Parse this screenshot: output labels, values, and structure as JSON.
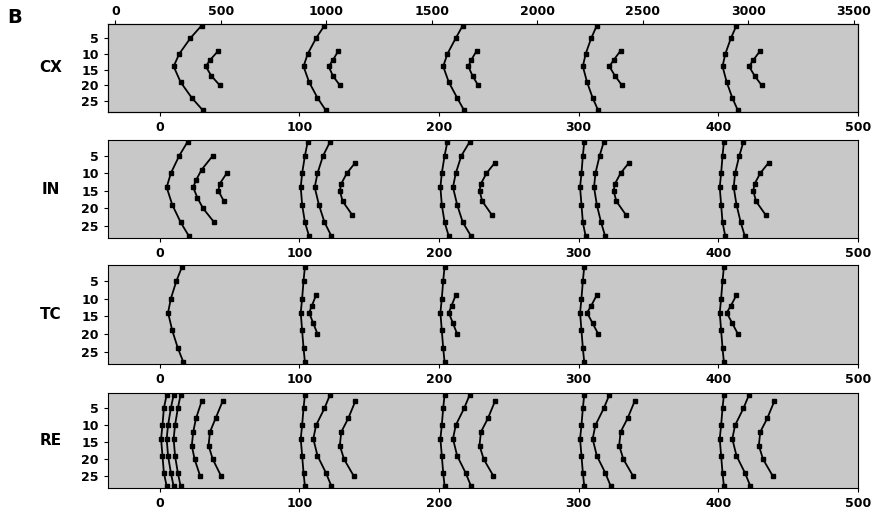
{
  "panel_label": "B",
  "chart_data": [
    {
      "type": "raster",
      "ylabel": "CX",
      "xlim": [
        -37,
        500
      ],
      "xticks": [
        0,
        100,
        200,
        300,
        400,
        500
      ],
      "x2lim": [
        -35,
        3520
      ],
      "x2ticks": [
        0,
        500,
        1000,
        1500,
        2000,
        2500,
        3000,
        3500
      ],
      "ylim": [
        28.5,
        0.5
      ],
      "yticks": [
        5,
        10,
        15,
        20,
        25
      ],
      "fronts": [
        {
          "rows": [
            1,
            5,
            10,
            14,
            19,
            24,
            28
          ],
          "times": [
            30,
            22,
            14,
            10,
            15,
            23,
            31
          ]
        },
        {
          "rows": [
            9,
            12,
            14,
            17,
            20
          ],
          "times": [
            42,
            36,
            33,
            37,
            43
          ]
        },
        {
          "rows": [
            1,
            5,
            10,
            14,
            19,
            24,
            28
          ],
          "times": [
            118,
            112,
            106,
            103,
            107,
            113,
            119
          ]
        },
        {
          "rows": [
            9,
            12,
            14,
            17,
            20
          ],
          "times": [
            128,
            124,
            121,
            124,
            129
          ]
        },
        {
          "rows": [
            1,
            5,
            10,
            14,
            19,
            24,
            28
          ],
          "times": [
            217,
            212,
            206,
            203,
            207,
            213,
            218
          ]
        },
        {
          "rows": [
            9,
            12,
            14,
            17,
            20
          ],
          "times": [
            227,
            223,
            221,
            224,
            228
          ]
        },
        {
          "rows": [
            1,
            5,
            10,
            14,
            19,
            24,
            28
          ],
          "times": [
            313,
            309,
            305,
            303,
            306,
            310,
            314
          ]
        },
        {
          "rows": [
            9,
            12,
            14,
            17,
            20
          ],
          "times": [
            330,
            325,
            322,
            326,
            331
          ]
        },
        {
          "rows": [
            1,
            5,
            10,
            14,
            19,
            24,
            28
          ],
          "times": [
            413,
            409,
            405,
            403,
            406,
            410,
            414
          ]
        },
        {
          "rows": [
            9,
            12,
            14,
            17,
            20
          ],
          "times": [
            430,
            425,
            422,
            426,
            431
          ]
        }
      ]
    },
    {
      "type": "raster",
      "ylabel": "IN",
      "xlim": [
        -37,
        500
      ],
      "xticks": [
        0,
        100,
        200,
        300,
        400,
        500
      ],
      "ylim": [
        28.5,
        0.5
      ],
      "yticks": [
        5,
        10,
        15,
        20,
        25
      ],
      "fronts": [
        {
          "rows": [
            1,
            5,
            10,
            14,
            19,
            24,
            28
          ],
          "times": [
            20,
            14,
            8,
            5,
            9,
            15,
            21
          ]
        },
        {
          "rows": [
            5,
            9,
            12,
            14,
            17,
            20,
            24
          ],
          "times": [
            38,
            30,
            26,
            24,
            27,
            31,
            39
          ]
        },
        {
          "rows": [
            10,
            13,
            15,
            18
          ],
          "times": [
            48,
            43,
            42,
            46
          ]
        },
        {
          "rows": [
            1,
            5,
            10,
            14,
            19,
            24,
            28
          ],
          "times": [
            106,
            104,
            102,
            101,
            102,
            104,
            107
          ]
        },
        {
          "rows": [
            1,
            5,
            10,
            14,
            19,
            24,
            28
          ],
          "times": [
            122,
            117,
            113,
            111,
            114,
            118,
            123
          ]
        },
        {
          "rows": [
            7,
            10,
            13,
            15,
            18,
            22
          ],
          "times": [
            140,
            134,
            130,
            129,
            131,
            138
          ]
        },
        {
          "rows": [
            1,
            5,
            10,
            14,
            19,
            24,
            28
          ],
          "times": [
            206,
            204,
            202,
            201,
            202,
            204,
            207
          ]
        },
        {
          "rows": [
            1,
            5,
            10,
            14,
            19,
            24,
            28
          ],
          "times": [
            222,
            216,
            212,
            210,
            213,
            217,
            223
          ]
        },
        {
          "rows": [
            7,
            10,
            13,
            15,
            18,
            22
          ],
          "times": [
            240,
            234,
            230,
            229,
            231,
            238
          ]
        },
        {
          "rows": [
            1,
            5,
            10,
            14,
            19,
            24,
            28
          ],
          "times": [
            304,
            303,
            302,
            301,
            302,
            303,
            305
          ]
        },
        {
          "rows": [
            1,
            5,
            10,
            14,
            19,
            24,
            28
          ],
          "times": [
            318,
            315,
            312,
            311,
            313,
            316,
            319
          ]
        },
        {
          "rows": [
            7,
            10,
            13,
            15,
            18,
            22
          ],
          "times": [
            336,
            330,
            326,
            325,
            327,
            334
          ]
        },
        {
          "rows": [
            1,
            5,
            10,
            14,
            19,
            24,
            28
          ],
          "times": [
            404,
            403,
            402,
            401,
            402,
            403,
            405
          ]
        },
        {
          "rows": [
            1,
            5,
            10,
            14,
            19,
            24,
            28
          ],
          "times": [
            418,
            415,
            412,
            411,
            413,
            416,
            419
          ]
        },
        {
          "rows": [
            7,
            10,
            13,
            15,
            18,
            22
          ],
          "times": [
            436,
            430,
            426,
            425,
            427,
            434
          ]
        }
      ]
    },
    {
      "type": "raster",
      "ylabel": "TC",
      "xlim": [
        -37,
        500
      ],
      "xticks": [
        0,
        100,
        200,
        300,
        400,
        500
      ],
      "ylim": [
        28.5,
        0.5
      ],
      "yticks": [
        5,
        10,
        15,
        20,
        25
      ],
      "fronts": [
        {
          "rows": [
            1,
            5,
            10,
            14,
            19,
            24,
            28
          ],
          "times": [
            16,
            12,
            8,
            6,
            9,
            13,
            17
          ]
        },
        {
          "rows": [
            1,
            5,
            10,
            14,
            19,
            24,
            28
          ],
          "times": [
            104,
            103,
            102,
            101,
            102,
            103,
            104
          ]
        },
        {
          "rows": [
            9,
            12,
            14,
            17,
            20
          ],
          "times": [
            112,
            109,
            107,
            110,
            113
          ]
        },
        {
          "rows": [
            1,
            5,
            10,
            14,
            19,
            24,
            28
          ],
          "times": [
            204,
            203,
            202,
            201,
            202,
            203,
            204
          ]
        },
        {
          "rows": [
            9,
            12,
            14,
            17,
            20
          ],
          "times": [
            212,
            209,
            207,
            210,
            213
          ]
        },
        {
          "rows": [
            1,
            5,
            10,
            14,
            19,
            24,
            28
          ],
          "times": [
            304,
            303,
            302,
            301,
            302,
            303,
            304
          ]
        },
        {
          "rows": [
            9,
            12,
            14,
            17,
            20
          ],
          "times": [
            313,
            309,
            306,
            310,
            314
          ]
        },
        {
          "rows": [
            1,
            5,
            10,
            14,
            19,
            24,
            28
          ],
          "times": [
            404,
            403,
            402,
            401,
            402,
            403,
            404
          ]
        },
        {
          "rows": [
            9,
            12,
            14,
            17,
            20
          ],
          "times": [
            413,
            409,
            406,
            410,
            414
          ]
        }
      ]
    },
    {
      "type": "raster",
      "ylabel": "RE",
      "xlim": [
        -37,
        500
      ],
      "xticks": [
        0,
        100,
        200,
        300,
        400,
        500
      ],
      "ylim": [
        28.5,
        0.5
      ],
      "yticks": [
        5,
        10,
        15,
        20,
        25
      ],
      "fronts": [
        {
          "rows": [
            1,
            5,
            10,
            14,
            19,
            24,
            28
          ],
          "times": [
            5,
            3,
            2,
            1,
            2,
            3,
            5
          ]
        },
        {
          "rows": [
            1,
            5,
            10,
            14,
            19,
            24,
            28
          ],
          "times": [
            10,
            8,
            6,
            5,
            6,
            8,
            10
          ]
        },
        {
          "rows": [
            1,
            5,
            10,
            14,
            19,
            24,
            28
          ],
          "times": [
            15,
            13,
            11,
            10,
            11,
            13,
            15
          ]
        },
        {
          "rows": [
            3,
            8,
            12,
            16,
            20,
            25
          ],
          "times": [
            30,
            26,
            24,
            23,
            25,
            29
          ]
        },
        {
          "rows": [
            3,
            8,
            12,
            16,
            20,
            25
          ],
          "times": [
            45,
            40,
            36,
            35,
            38,
            44
          ]
        },
        {
          "rows": [
            1,
            5,
            10,
            14,
            19,
            24,
            28
          ],
          "times": [
            104,
            103,
            102,
            101,
            102,
            103,
            104
          ]
        },
        {
          "rows": [
            1,
            5,
            10,
            14,
            19,
            24,
            28
          ],
          "times": [
            122,
            118,
            112,
            110,
            113,
            119,
            123
          ]
        },
        {
          "rows": [
            3,
            8,
            12,
            16,
            20,
            25
          ],
          "times": [
            140,
            135,
            130,
            129,
            132,
            139
          ]
        },
        {
          "rows": [
            1,
            5,
            10,
            14,
            19,
            24,
            28
          ],
          "times": [
            204,
            203,
            202,
            201,
            202,
            203,
            204
          ]
        },
        {
          "rows": [
            1,
            5,
            10,
            14,
            19,
            24,
            28
          ],
          "times": [
            222,
            218,
            212,
            210,
            213,
            219,
            223
          ]
        },
        {
          "rows": [
            3,
            8,
            12,
            16,
            20,
            25
          ],
          "times": [
            240,
            235,
            230,
            229,
            232,
            239
          ]
        },
        {
          "rows": [
            1,
            5,
            10,
            14,
            19,
            24,
            28
          ],
          "times": [
            304,
            303,
            302,
            301,
            302,
            303,
            304
          ]
        },
        {
          "rows": [
            1,
            5,
            10,
            14,
            19,
            24,
            28
          ],
          "times": [
            322,
            318,
            312,
            310,
            313,
            319,
            323
          ]
        },
        {
          "rows": [
            3,
            8,
            12,
            16,
            20,
            25
          ],
          "times": [
            340,
            335,
            330,
            329,
            332,
            339
          ]
        },
        {
          "rows": [
            1,
            5,
            10,
            14,
            19,
            24,
            28
          ],
          "times": [
            404,
            403,
            402,
            401,
            402,
            403,
            404
          ]
        },
        {
          "rows": [
            1,
            5,
            10,
            14,
            19,
            24,
            28
          ],
          "times": [
            422,
            418,
            412,
            410,
            413,
            419,
            423
          ]
        },
        {
          "rows": [
            3,
            8,
            12,
            16,
            20,
            25
          ],
          "times": [
            440,
            435,
            430,
            429,
            432,
            439
          ]
        }
      ]
    }
  ]
}
